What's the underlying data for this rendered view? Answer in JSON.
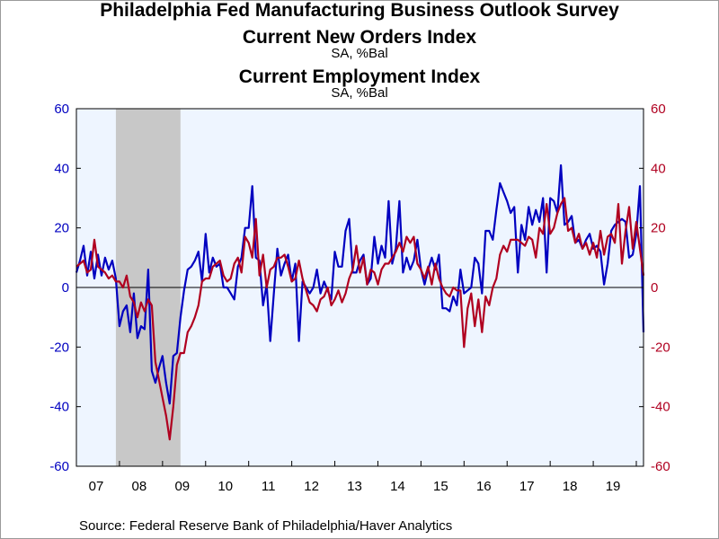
{
  "title": "Philadelphia Fed Manufacturing Business Outlook Survey",
  "source": "Source:  Federal Reserve Bank of Philadelphia/Haver Analytics",
  "chart_data": {
    "type": "line",
    "title": "Philadelphia Fed Manufacturing Business Outlook Survey",
    "x_tick_labels": [
      "07",
      "08",
      "09",
      "10",
      "11",
      "12",
      "13",
      "14",
      "15",
      "16",
      "17",
      "18",
      "19"
    ],
    "x_range": [
      "2007-01",
      "2020-03"
    ],
    "ylim": [
      -60,
      60
    ],
    "y_ticks": [
      -60,
      -40,
      -20,
      0,
      20,
      40,
      60
    ],
    "y_tick_labels": [
      "-60",
      "-40",
      "-20",
      "0",
      "20",
      "40",
      "60"
    ],
    "grid": false,
    "recession_shading": {
      "start": "2007-12",
      "end": "2009-06",
      "color": "#c8c8c8"
    },
    "zero_line": true,
    "plot_background": "#eef5ff",
    "series": [
      {
        "name": "Current New Orders Index",
        "unit": "SA, %Bal",
        "axis": "left",
        "color": "#0000c0",
        "start": "2007-01",
        "values": [
          5,
          9,
          14,
          4,
          12,
          3,
          11,
          4,
          10,
          6,
          9,
          3,
          -13,
          -8,
          -6,
          -15,
          -2,
          -17,
          -13,
          -14,
          6,
          -28,
          -32,
          -27,
          -23,
          -32,
          -39,
          -23,
          -22,
          -10,
          -1,
          6,
          7,
          9,
          12,
          2,
          18,
          5,
          10,
          7,
          8,
          0,
          0,
          -2,
          -4,
          7,
          10,
          20,
          20,
          34,
          10,
          9,
          -6,
          1,
          -18,
          -2,
          13,
          4,
          8,
          11,
          2,
          8,
          -18,
          2,
          0,
          -2,
          0,
          6,
          -2,
          2,
          -1,
          -4,
          12,
          7,
          7,
          19,
          23,
          5,
          5,
          9,
          11,
          1,
          3,
          17,
          8,
          14,
          10,
          29,
          8,
          13,
          29,
          5,
          10,
          6,
          9,
          16,
          6,
          1,
          6,
          10,
          6,
          11,
          -7,
          -7,
          -8,
          -3,
          -6,
          6,
          -2,
          -1,
          0,
          10,
          8,
          -2,
          19,
          19,
          16,
          26,
          35,
          32,
          29,
          25,
          27,
          5,
          21,
          16,
          27,
          21,
          26,
          22,
          30,
          5,
          30,
          29,
          25,
          41,
          21,
          22,
          24,
          15,
          16,
          13,
          16,
          18,
          13,
          14,
          12,
          1,
          8,
          19,
          21,
          22,
          23,
          22,
          10,
          11,
          18,
          34,
          -15
        ]
      },
      {
        "name": "Current Employment Index",
        "unit": "SA, %Bal",
        "axis": "right",
        "color": "#b00020",
        "start": "2007-01",
        "values": [
          7,
          8,
          9,
          5,
          6,
          16,
          7,
          6,
          5,
          3,
          4,
          2,
          2,
          0,
          4,
          -3,
          -5,
          -10,
          -5,
          -8,
          -4,
          -6,
          -25,
          -31,
          -37,
          -43,
          -51,
          -40,
          -26,
          -22,
          -22,
          -15,
          -13,
          -10,
          -6,
          2,
          3,
          3,
          7,
          8,
          9,
          4,
          2,
          3,
          8,
          10,
          5,
          17,
          15,
          10,
          23,
          4,
          11,
          0,
          6,
          7,
          10,
          10,
          11,
          7,
          2,
          3,
          9,
          3,
          -1,
          -5,
          -6,
          -8,
          -4,
          -3,
          0,
          -6,
          -4,
          -1,
          -5,
          -2,
          3,
          6,
          14,
          5,
          10,
          1,
          6,
          5,
          1,
          6,
          8,
          8,
          10,
          12,
          15,
          12,
          17,
          15,
          17,
          8,
          6,
          3,
          7,
          1,
          8,
          3,
          0,
          -2,
          -3,
          0,
          -1,
          -1,
          -20,
          -7,
          -2,
          -13,
          -4,
          -15,
          -3,
          -6,
          0,
          3,
          11,
          14,
          12,
          16,
          16,
          16,
          15,
          14,
          17,
          16,
          10,
          20,
          18,
          28,
          18,
          20,
          25,
          28,
          30,
          19,
          20,
          15,
          18,
          13,
          15,
          11,
          15,
          10,
          19,
          11,
          17,
          18,
          15,
          28,
          8,
          19,
          27,
          13,
          22,
          13,
          4
        ]
      }
    ]
  }
}
